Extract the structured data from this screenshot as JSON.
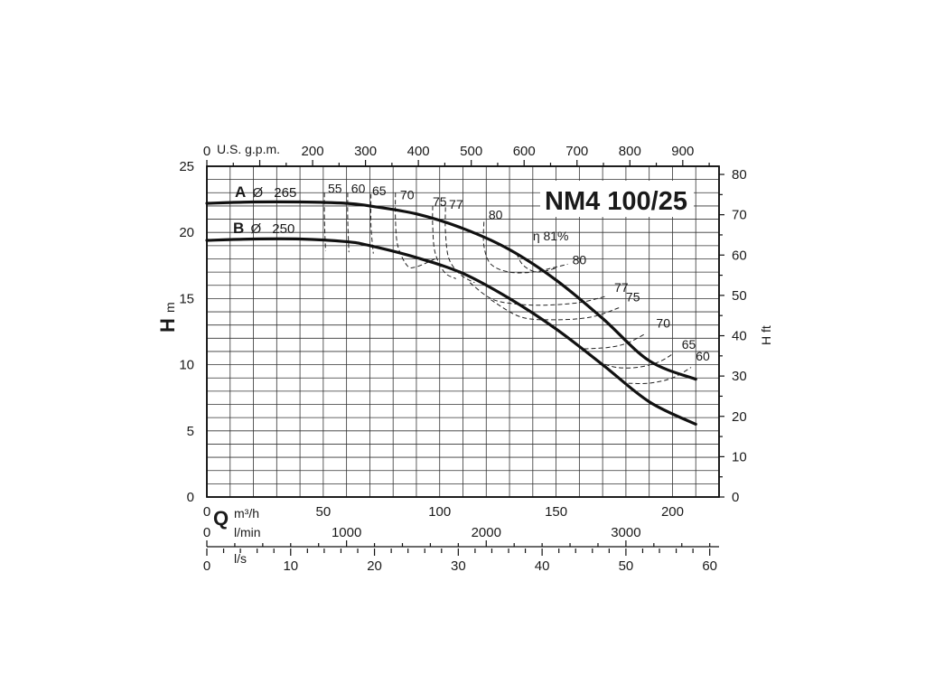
{
  "chart_data": {
    "type": "line",
    "title": "NM4 100/25",
    "y_left": {
      "letter": "H",
      "unit": "m",
      "ylim": [
        0,
        25
      ],
      "ticks": [
        "0",
        "5",
        "10",
        "15",
        "20",
        "25"
      ]
    },
    "y_right": {
      "label": "H ft",
      "ylim": [
        0,
        82.02
      ],
      "ticks": [
        "0",
        "10",
        "20",
        "30",
        "40",
        "50",
        "60",
        "70",
        "80"
      ]
    },
    "x_m3h": {
      "letter": "Q",
      "unit": "m³/h",
      "xlim": [
        0,
        220
      ],
      "ticks": [
        "0",
        "50",
        "100",
        "150",
        "200"
      ]
    },
    "x_gpm": {
      "unit": "U.S. g.p.m.",
      "ticks": [
        "0",
        "200",
        "300",
        "400",
        "500",
        "600",
        "700",
        "800",
        "900"
      ]
    },
    "x_lmin": {
      "unit": "l/min",
      "ticks": [
        "0",
        "1000",
        "2000",
        "3000"
      ]
    },
    "x_ls": {
      "unit": "l/s",
      "ticks": [
        "0",
        "10",
        "20",
        "30",
        "40",
        "50",
        "60"
      ]
    },
    "grid": true,
    "series": [
      {
        "letter": "A",
        "diameter_symbol": "Ø",
        "diameter": "265",
        "x": [
          0,
          20,
          40,
          60,
          70,
          90,
          110,
          130,
          150,
          170,
          190,
          210
        ],
        "y": [
          22.2,
          22.3,
          22.3,
          22.2,
          22.0,
          21.4,
          20.3,
          18.7,
          16.4,
          13.5,
          10.3,
          8.9
        ]
      },
      {
        "letter": "B",
        "diameter_symbol": "Ø",
        "diameter": "250",
        "x": [
          0,
          20,
          40,
          60,
          70,
          90,
          110,
          130,
          150,
          170,
          190,
          210
        ],
        "y": [
          19.4,
          19.5,
          19.5,
          19.3,
          19.0,
          18.1,
          16.9,
          15.0,
          12.7,
          10.0,
          7.2,
          5.5
        ]
      }
    ],
    "efficiency_labels": [
      {
        "label": "55",
        "x": 52,
        "y": 23.0
      },
      {
        "label": "60",
        "x": 62,
        "y": 23.0
      },
      {
        "label": "65",
        "x": 71,
        "y": 22.8
      },
      {
        "label": "70",
        "x": 83,
        "y": 22.5
      },
      {
        "label": "75",
        "x": 97,
        "y": 22.0
      },
      {
        "label": "77",
        "x": 104,
        "y": 21.8
      },
      {
        "label": "80",
        "x": 121,
        "y": 21.0
      },
      {
        "label": "η 81%",
        "x": 140,
        "y": 19.4
      },
      {
        "label": "80",
        "x": 157,
        "y": 17.6
      },
      {
        "label": "77",
        "x": 175,
        "y": 15.5
      },
      {
        "label": "75",
        "x": 180,
        "y": 14.8
      },
      {
        "label": "70",
        "x": 193,
        "y": 12.8
      },
      {
        "label": "65",
        "x": 204,
        "y": 11.2
      },
      {
        "label": "60",
        "x": 210,
        "y": 10.3
      }
    ],
    "efficiency_curves": [
      {
        "name": "55",
        "x": [
          50.5,
          50.5,
          51.0
        ],
        "y": [
          23.0,
          21.0,
          18.6
        ]
      },
      {
        "name": "60",
        "x": [
          60.5,
          60.5,
          61.0
        ],
        "y": [
          23.0,
          21.0,
          18.5
        ]
      },
      {
        "name": "65",
        "x": [
          70.5,
          70.5,
          71.5
        ],
        "y": [
          22.9,
          20.5,
          18.4
        ]
      },
      {
        "name": "70",
        "x": [
          81,
          81,
          82,
          86,
          90,
          98
        ],
        "y": [
          23.0,
          21.0,
          19.0,
          17.5,
          17.4,
          18.0
        ]
      },
      {
        "name": "75",
        "x": [
          97,
          97,
          98,
          102,
          107
        ],
        "y": [
          22.0,
          20.5,
          18.5,
          17.0,
          16.5
        ]
      },
      {
        "name": "77",
        "x": [
          102.5,
          102.5,
          104,
          109,
          115
        ],
        "y": [
          21.9,
          20.0,
          18.0,
          16.8,
          16.2
        ]
      },
      {
        "name": "80",
        "x": [
          119,
          119,
          122,
          130,
          140,
          148,
          155
        ],
        "y": [
          20.8,
          19.0,
          17.6,
          17.0,
          17.0,
          17.3,
          17.6
        ]
      },
      {
        "name": "81",
        "x": [
          133,
          136,
          142,
          150
        ],
        "y": [
          18.4,
          17.5,
          17.0,
          17.3
        ]
      },
      {
        "name": "77b",
        "x": [
          113,
          122,
          132,
          145,
          160,
          172
        ],
        "y": [
          16.2,
          15.0,
          14.6,
          14.5,
          14.7,
          15.2
        ]
      },
      {
        "name": "75b",
        "x": [
          122,
          135,
          150,
          165,
          177
        ],
        "y": [
          14.9,
          13.6,
          13.4,
          13.6,
          14.3
        ]
      },
      {
        "name": "70b",
        "x": [
          162,
          172,
          180,
          188
        ],
        "y": [
          11.2,
          11.3,
          11.6,
          12.3
        ]
      },
      {
        "name": "65b",
        "x": [
          168,
          176,
          185,
          194,
          200
        ],
        "y": [
          10.2,
          9.8,
          9.8,
          10.2,
          10.8
        ]
      },
      {
        "name": "60b",
        "x": [
          181,
          190,
          200,
          208
        ],
        "y": [
          8.6,
          8.6,
          9.0,
          9.8
        ]
      }
    ]
  }
}
